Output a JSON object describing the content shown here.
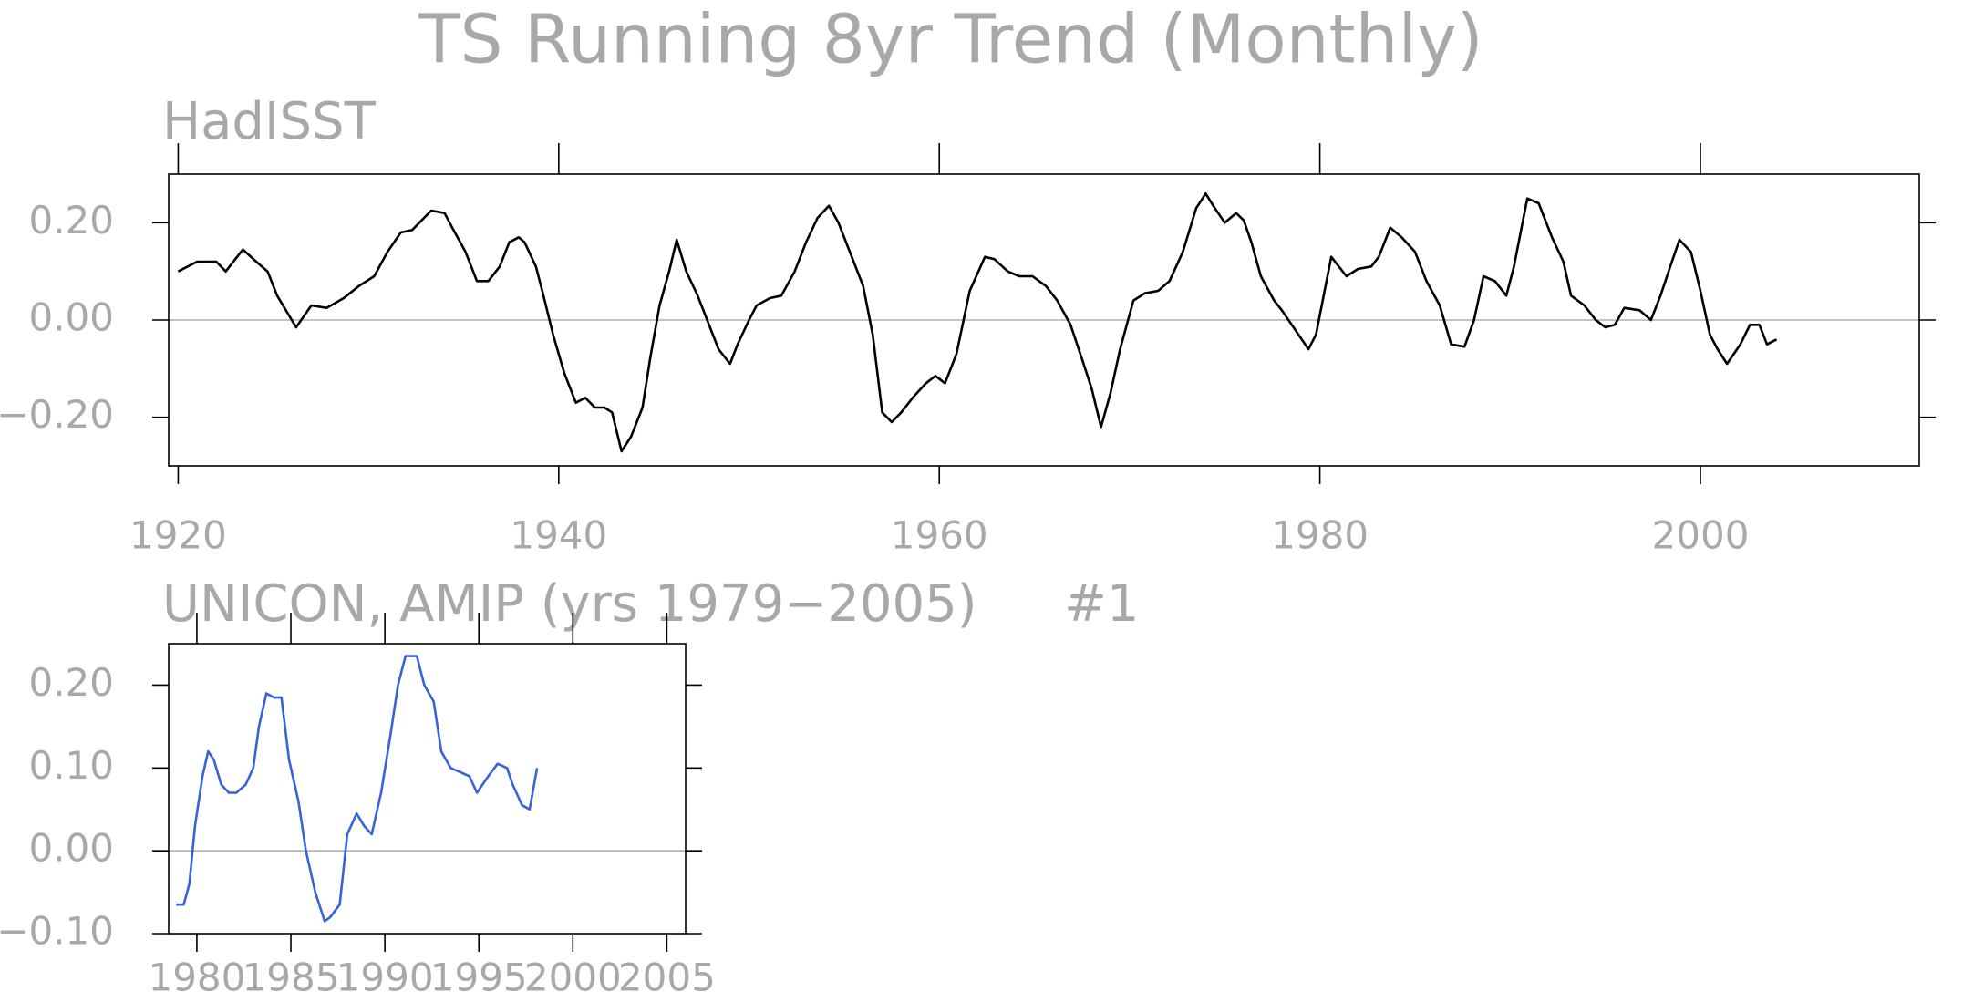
{
  "title": "TS Running 8yr Trend (Monthly)",
  "chart_data": [
    {
      "type": "line",
      "subtitle": "HadISST",
      "color": "#000000",
      "xlim": [
        1919.5,
        2011.5
      ],
      "ylim": [
        -0.3,
        0.3
      ],
      "xticks": [
        1920,
        1940,
        1960,
        1980,
        2000
      ],
      "yticks": [
        {
          "value": -0.2,
          "label": "−0.20"
        },
        {
          "value": 0,
          "label": "0.00"
        },
        {
          "value": 0.2,
          "label": "0.20"
        }
      ],
      "reference_line": 0,
      "x": [
        1920,
        1921,
        1922,
        1922.5,
        1923.4,
        1924.1,
        1924.7,
        1925.2,
        1926.2,
        1927,
        1927.8,
        1928.7,
        1929.5,
        1930.3,
        1931,
        1931.7,
        1932.3,
        1933.3,
        1934,
        1934.4,
        1935.1,
        1935.7,
        1936.3,
        1936.9,
        1937.4,
        1937.9,
        1938.2,
        1938.8,
        1939.2,
        1939.7,
        1940.3,
        1940.9,
        1941.4,
        1941.9,
        1942.4,
        1942.8,
        1943.3,
        1943.8,
        1944.4,
        1944.8,
        1945.3,
        1945.8,
        1946.2,
        1946.7,
        1947.3,
        1947.8,
        1948.4,
        1949,
        1949.4,
        1950,
        1950.4,
        1951.1,
        1951.7,
        1952.4,
        1953,
        1953.6,
        1954.2,
        1954.7,
        1955.4,
        1956,
        1956.5,
        1957,
        1957.5,
        1958,
        1958.6,
        1959.3,
        1959.8,
        1960.3,
        1960.9,
        1961.6,
        1962.4,
        1962.9,
        1963.6,
        1964.2,
        1964.9,
        1965.6,
        1966.2,
        1966.9,
        1967.5,
        1968,
        1968.5,
        1969,
        1969.5,
        1970.2,
        1970.8,
        1971.5,
        1972.1,
        1972.8,
        1973.5,
        1974,
        1974.4,
        1975,
        1975.6,
        1976,
        1976.4,
        1976.9,
        1977.6,
        1978,
        1978.7,
        1979.4,
        1979.8,
        1980.6,
        1981.4,
        1982,
        1982.7,
        1983.1,
        1983.7,
        1984.3,
        1985,
        1985.6,
        1986.3,
        1986.9,
        1987.6,
        1988.1,
        1988.6,
        1989.2,
        1989.8,
        1990.2,
        1990.9,
        1991.5,
        1992.2,
        1992.8,
        1993.2,
        1993.9,
        1994.5,
        1995,
        1995.5,
        1996,
        1996.8,
        1997.4,
        1997.9,
        1998.5,
        1998.9,
        1999.5,
        2000,
        2000.5,
        2000.9,
        2001.4,
        2002.1,
        2002.6,
        2003.1,
        2003.5,
        2004
      ],
      "values": [
        0.1,
        0.12,
        0.12,
        0.1,
        0.145,
        0.12,
        0.1,
        0.05,
        -0.015,
        0.03,
        0.025,
        0.045,
        0.07,
        0.09,
        0.14,
        0.18,
        0.185,
        0.225,
        0.22,
        0.19,
        0.14,
        0.08,
        0.08,
        0.11,
        0.16,
        0.17,
        0.16,
        0.11,
        0.05,
        -0.03,
        -0.11,
        -0.17,
        -0.16,
        -0.18,
        -0.18,
        -0.19,
        -0.27,
        -0.24,
        -0.18,
        -0.08,
        0.03,
        0.1,
        0.165,
        0.1,
        0.05,
        0.0,
        -0.06,
        -0.09,
        -0.05,
        0.0,
        0.03,
        0.045,
        0.05,
        0.1,
        0.16,
        0.21,
        0.235,
        0.2,
        0.13,
        0.07,
        -0.03,
        -0.19,
        -0.21,
        -0.19,
        -0.16,
        -0.13,
        -0.115,
        -0.13,
        -0.07,
        0.06,
        0.13,
        0.125,
        0.1,
        0.09,
        0.09,
        0.07,
        0.04,
        -0.01,
        -0.08,
        -0.14,
        -0.22,
        -0.15,
        -0.06,
        0.04,
        0.055,
        0.06,
        0.08,
        0.14,
        0.23,
        0.26,
        0.235,
        0.2,
        0.22,
        0.205,
        0.16,
        0.09,
        0.04,
        0.02,
        -0.02,
        -0.06,
        -0.03,
        0.13,
        0.09,
        0.105,
        0.11,
        0.13,
        0.19,
        0.17,
        0.14,
        0.08,
        0.03,
        -0.05,
        -0.055,
        0.0,
        0.09,
        0.08,
        0.05,
        0.11,
        0.25,
        0.24,
        0.17,
        0.12,
        0.05,
        0.03,
        0.0,
        -0.015,
        -0.01,
        0.025,
        0.02,
        0.0,
        0.05,
        0.12,
        0.165,
        0.14,
        0.06,
        -0.03,
        -0.06,
        -0.09,
        -0.05,
        -0.01,
        -0.01,
        -0.05,
        -0.04
      ]
    },
    {
      "type": "line",
      "subtitle": "UNICON, AMIP (yrs 1979−2005)",
      "annotation": "#1",
      "color": "#3a62d8",
      "xlim": [
        1978.5,
        2006
      ],
      "ylim": [
        -0.1,
        0.25
      ],
      "xticks": [
        1980,
        1985,
        1990,
        1995,
        2000,
        2005
      ],
      "yticks": [
        {
          "value": -0.1,
          "label": "−0.10"
        },
        {
          "value": 0,
          "label": "0.00"
        },
        {
          "value": 0.1,
          "label": "0.10"
        },
        {
          "value": 0.2,
          "label": "0.20"
        }
      ],
      "reference_line": 0,
      "x": [
        1978.9,
        1979.3,
        1979.6,
        1979.9,
        1980.3,
        1980.6,
        1980.9,
        1981.3,
        1981.7,
        1982.1,
        1982.6,
        1983,
        1983.3,
        1983.7,
        1984.1,
        1984.5,
        1984.9,
        1985.4,
        1985.8,
        1986.3,
        1986.8,
        1987.1,
        1987.6,
        1988,
        1988.5,
        1988.9,
        1989.3,
        1989.8,
        1990.3,
        1990.7,
        1991.1,
        1991.7,
        1992.1,
        1992.6,
        1993,
        1993.5,
        1994,
        1994.5,
        1994.9,
        1995.5,
        1996,
        1996.5,
        1996.8,
        1997.3,
        1997.7,
        1998.1
      ],
      "values": [
        -0.065,
        -0.065,
        -0.04,
        0.03,
        0.09,
        0.12,
        0.11,
        0.08,
        0.07,
        0.07,
        0.08,
        0.1,
        0.15,
        0.19,
        0.185,
        0.185,
        0.11,
        0.06,
        0.0,
        -0.05,
        -0.085,
        -0.08,
        -0.065,
        0.02,
        0.045,
        0.03,
        0.02,
        0.07,
        0.14,
        0.2,
        0.235,
        0.235,
        0.2,
        0.18,
        0.12,
        0.1,
        0.095,
        0.09,
        0.07,
        0.09,
        0.105,
        0.1,
        0.08,
        0.055,
        0.05,
        0.1
      ]
    }
  ]
}
